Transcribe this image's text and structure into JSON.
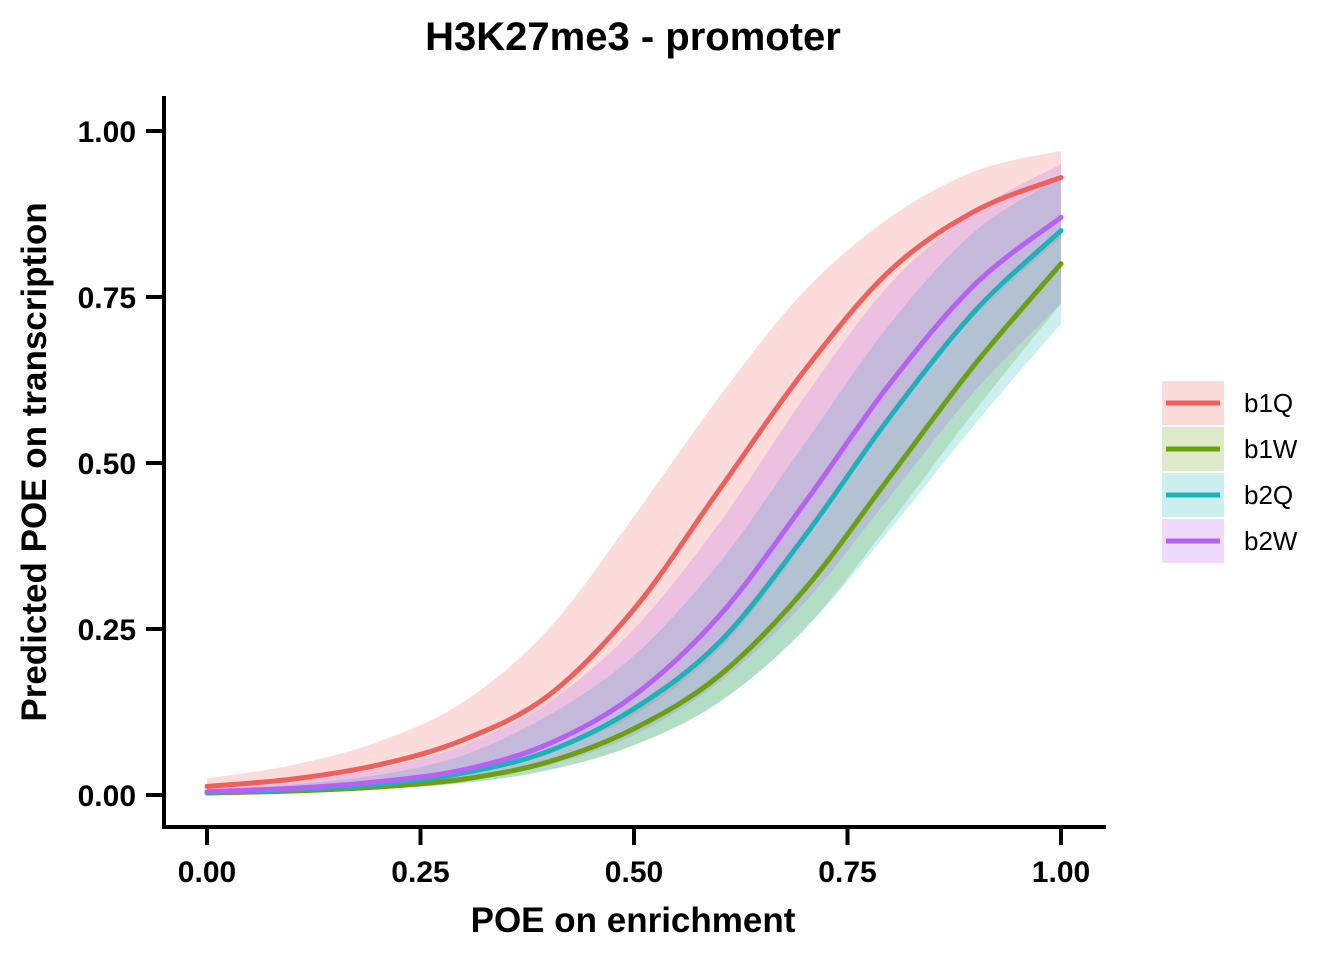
{
  "chart_data": {
    "type": "line",
    "title": "H3K27me3 - promoter",
    "xlabel": "POE on enrichment",
    "ylabel": "Predicted POE on transcription",
    "xlim": [
      0,
      1
    ],
    "ylim": [
      0,
      1
    ],
    "x_ticks": [
      "0.00",
      "0.25",
      "0.50",
      "0.75",
      "1.00"
    ],
    "y_ticks": [
      "0.00",
      "0.25",
      "0.50",
      "0.75",
      "1.00"
    ],
    "grid": false,
    "legend_position": "right",
    "x": [
      0,
      0.1,
      0.2,
      0.3,
      0.4,
      0.5,
      0.6,
      0.7,
      0.8,
      0.9,
      1.0
    ],
    "series": [
      {
        "name": "b1Q",
        "color": "#F0605A",
        "values": [
          0.013,
          0.024,
          0.045,
          0.083,
          0.15,
          0.28,
          0.46,
          0.64,
          0.79,
          0.88,
          0.93
        ],
        "lower": [
          0.006,
          0.011,
          0.02,
          0.035,
          0.065,
          0.12,
          0.22,
          0.38,
          0.56,
          0.72,
          0.84
        ],
        "upper": [
          0.025,
          0.045,
          0.08,
          0.14,
          0.25,
          0.42,
          0.6,
          0.76,
          0.87,
          0.94,
          0.97
        ]
      },
      {
        "name": "b1W",
        "color": "#6E9F0E",
        "values": [
          0.003,
          0.006,
          0.012,
          0.024,
          0.05,
          0.1,
          0.18,
          0.31,
          0.48,
          0.65,
          0.8
        ],
        "lower": [
          0.002,
          0.004,
          0.009,
          0.018,
          0.038,
          0.075,
          0.14,
          0.25,
          0.41,
          0.58,
          0.74
        ],
        "upper": [
          0.005,
          0.009,
          0.017,
          0.033,
          0.066,
          0.13,
          0.23,
          0.38,
          0.56,
          0.72,
          0.85
        ]
      },
      {
        "name": "b2Q",
        "color": "#19B4B9",
        "values": [
          0.004,
          0.008,
          0.016,
          0.033,
          0.066,
          0.13,
          0.23,
          0.39,
          0.57,
          0.73,
          0.85
        ],
        "lower": [
          0.002,
          0.004,
          0.009,
          0.018,
          0.037,
          0.075,
          0.14,
          0.25,
          0.4,
          0.56,
          0.71
        ],
        "upper": [
          0.008,
          0.016,
          0.03,
          0.06,
          0.12,
          0.21,
          0.35,
          0.53,
          0.71,
          0.85,
          0.93
        ]
      },
      {
        "name": "b2W",
        "color": "#B760F5",
        "values": [
          0.005,
          0.01,
          0.02,
          0.038,
          0.077,
          0.15,
          0.27,
          0.44,
          0.62,
          0.77,
          0.87
        ],
        "lower": [
          0.002,
          0.005,
          0.01,
          0.022,
          0.045,
          0.09,
          0.17,
          0.29,
          0.45,
          0.61,
          0.74
        ],
        "upper": [
          0.012,
          0.022,
          0.04,
          0.075,
          0.14,
          0.25,
          0.41,
          0.6,
          0.77,
          0.88,
          0.95
        ]
      }
    ]
  }
}
